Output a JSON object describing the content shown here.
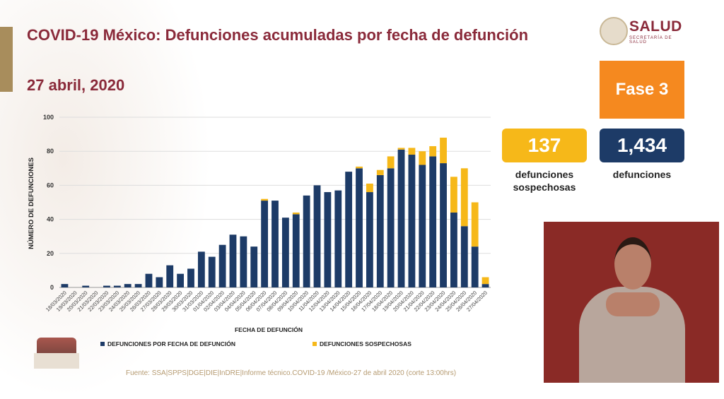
{
  "header": {
    "title": "COVID-19 México: Defunciones acumuladas por fecha de defunción",
    "date": "27 abril, 2020"
  },
  "logo": {
    "name": "SALUD",
    "subtitle": "SECRETARÍA DE SALUD"
  },
  "phase": "Fase 3",
  "stats": {
    "suspected_value": "137",
    "suspected_label": "defunciones sospechosas",
    "deaths_value": "1,434",
    "deaths_label": "defunciones"
  },
  "source": "Fuente: SSA|SPPS|DGE|DIE|InDRE|Informe técnico.COVID-19 /México-27 de abril 2020 (corte 13:00hrs)",
  "colors": {
    "confirmed": "#1d3b67",
    "suspected": "#f6b819",
    "phase": "#f5891f",
    "title": "#8a2a3a"
  },
  "chart_data": {
    "type": "bar",
    "stacked": true,
    "xlabel": "FECHA DE DEFUNCIÓN",
    "ylabel": "NÚMERO DE DEFUNCIONES",
    "ylim": [
      0,
      100
    ],
    "yticks": [
      0,
      20,
      40,
      60,
      80,
      100
    ],
    "grid": true,
    "legend_position": "bottom",
    "categories": [
      "18/03/2020",
      "19/03/2020",
      "20/03/2020",
      "21/03/2020",
      "22/03/2020",
      "23/03/2020",
      "24/03/2020",
      "25/03/2020",
      "26/03/2020",
      "27/03/2020",
      "28/03/2020",
      "29/03/2020",
      "30/03/2020",
      "31/03/2020",
      "01/04/2020",
      "02/04/2020",
      "03/04/2020",
      "04/04/2020",
      "05/04/2020",
      "06/04/2020",
      "07/04/2020",
      "08/04/2020",
      "09/04/2020",
      "10/04/2020",
      "11/04/2020",
      "12/04/2020",
      "13/04/2020",
      "14/04/2020",
      "15/04/2020",
      "16/04/2020",
      "17/04/2020",
      "18/04/2020",
      "19/04/2020",
      "20/04/2020",
      "21/04/2020",
      "22/04/2020",
      "23/04/2020",
      "24/04/2020",
      "25/04/2020",
      "26/04/2020",
      "27/04/2020"
    ],
    "series": [
      {
        "name": "DEFUNCIONES POR FECHA DE DEFUNCIÓN",
        "values": [
          2,
          0,
          1,
          0,
          1,
          1,
          2,
          2,
          8,
          6,
          13,
          8,
          11,
          21,
          18,
          25,
          31,
          30,
          24,
          51,
          51,
          41,
          43,
          54,
          60,
          56,
          57,
          68,
          70,
          56,
          66,
          70,
          81,
          78,
          72,
          77,
          73,
          44,
          36,
          24,
          2
        ]
      },
      {
        "name": "DEFUNCIONES SOSPECHOSAS",
        "values": [
          0,
          0,
          0,
          0,
          0,
          0,
          0,
          0,
          0,
          0,
          0,
          0,
          0,
          0,
          0,
          0,
          0,
          0,
          0,
          1,
          0,
          0,
          1,
          0,
          0,
          0,
          0,
          0,
          1,
          5,
          3,
          7,
          1,
          4,
          8,
          6,
          15,
          21,
          34,
          26,
          4
        ]
      }
    ]
  }
}
